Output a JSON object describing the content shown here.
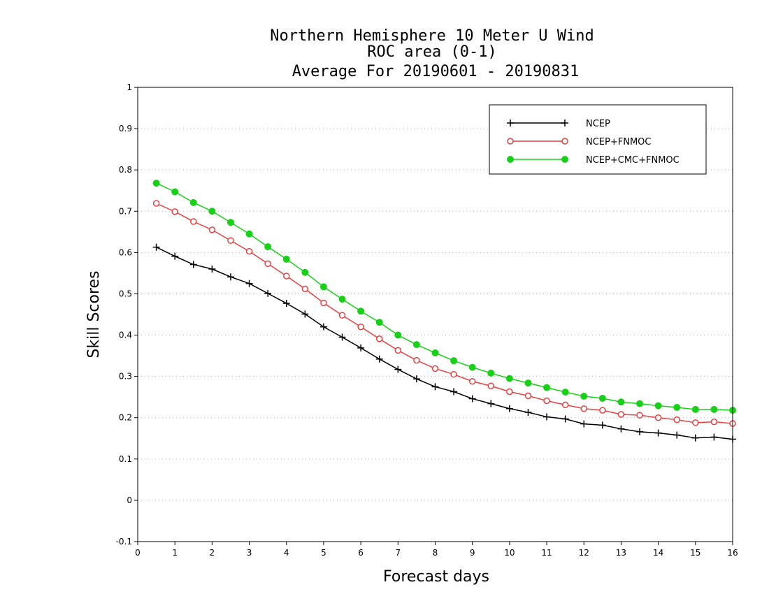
{
  "chart_data": {
    "type": "line",
    "title": "Northern Hemisphere 10 Meter U Wind",
    "subtitle": "ROC area (0-1)",
    "subtitle2": "Average For 20190601 - 20190831",
    "xlabel": "Forecast days",
    "ylabel": "Skill Scores",
    "xlim": [
      0,
      16
    ],
    "ylim": [
      -0.1,
      1
    ],
    "xticks": [
      0,
      1,
      2,
      3,
      4,
      5,
      6,
      7,
      8,
      9,
      10,
      11,
      12,
      13,
      14,
      15,
      16
    ],
    "yticks": [
      -0.1,
      0,
      0.1,
      0.2,
      0.3,
      0.4,
      0.5,
      0.6,
      0.7,
      0.8,
      0.9,
      1
    ],
    "ytick_labels": [
      "-0.1",
      "0",
      "0.1",
      "0.2",
      "0.3",
      "0.4",
      "0.5",
      "0.6",
      "0.7",
      "0.8",
      "0.9",
      "1"
    ],
    "grid": "horizontal-dotted",
    "legend_position": "top-right",
    "x": [
      0.5,
      1,
      1.5,
      2,
      2.5,
      3,
      3.5,
      4,
      4.5,
      5,
      5.5,
      6,
      6.5,
      7,
      7.5,
      8,
      8.5,
      9,
      9.5,
      10,
      10.5,
      11,
      11.5,
      12,
      12.5,
      13,
      13.5,
      14,
      14.5,
      15,
      15.5,
      16
    ],
    "series": [
      {
        "name": "NCEP",
        "color": "#000000",
        "marker": "plus",
        "values": [
          0.613,
          0.591,
          0.571,
          0.56,
          0.541,
          0.525,
          0.501,
          0.477,
          0.451,
          0.42,
          0.395,
          0.369,
          0.342,
          0.317,
          0.294,
          0.275,
          0.263,
          0.246,
          0.234,
          0.222,
          0.213,
          0.202,
          0.197,
          0.185,
          0.182,
          0.173,
          0.166,
          0.163,
          0.158,
          0.151,
          0.153,
          0.148
        ]
      },
      {
        "name": "NCEP+FNMOC",
        "color": "#e84040",
        "marker": "open-circle",
        "values": [
          0.719,
          0.699,
          0.675,
          0.655,
          0.629,
          0.603,
          0.573,
          0.543,
          0.512,
          0.478,
          0.448,
          0.42,
          0.391,
          0.363,
          0.339,
          0.319,
          0.305,
          0.288,
          0.277,
          0.263,
          0.253,
          0.241,
          0.231,
          0.222,
          0.218,
          0.208,
          0.206,
          0.2,
          0.195,
          0.188,
          0.19,
          0.186
        ]
      },
      {
        "name": "NCEP+CMC+FNMOC",
        "color": "#18d018",
        "marker": "filled-circle",
        "values": [
          0.768,
          0.747,
          0.721,
          0.7,
          0.673,
          0.645,
          0.614,
          0.584,
          0.552,
          0.517,
          0.487,
          0.458,
          0.431,
          0.4,
          0.377,
          0.357,
          0.338,
          0.322,
          0.308,
          0.295,
          0.284,
          0.273,
          0.262,
          0.252,
          0.247,
          0.238,
          0.234,
          0.229,
          0.225,
          0.22,
          0.22,
          0.218
        ]
      }
    ]
  }
}
